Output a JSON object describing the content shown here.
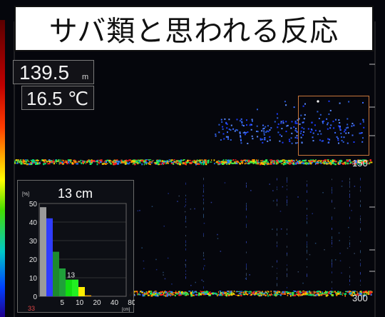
{
  "title": "サバ類と思われる反応",
  "depth": {
    "value": "139.5",
    "unit": "m"
  },
  "temperature": {
    "value": "16.5 ℃"
  },
  "scale": {
    "mark_150": "150",
    "mark_300": "300"
  },
  "histogram": {
    "size_label": "13 cm",
    "percent_label": "[%]",
    "count_label": "33",
    "unit_label": "[cm]",
    "peak_label": "13",
    "chart_data": {
      "type": "bar",
      "x": [
        2.5,
        5,
        7.5,
        10,
        12.5,
        15,
        17.5,
        20
      ],
      "values": [
        48,
        42,
        24,
        15,
        9,
        9,
        5,
        0.5
      ],
      "bar_colors": [
        "#9a9a9a",
        "#2f3cff",
        "#1d8a2e",
        "#1fa03a",
        "#11dd11",
        "#22ee22",
        "#ffee00",
        "#ffaa00"
      ],
      "x_ticks": [
        "5",
        "10",
        "20",
        "40",
        "80"
      ],
      "y_ticks": [
        "0",
        "10",
        "20",
        "30",
        "40",
        "50"
      ],
      "ylim": [
        0,
        50
      ],
      "grid": true
    }
  }
}
